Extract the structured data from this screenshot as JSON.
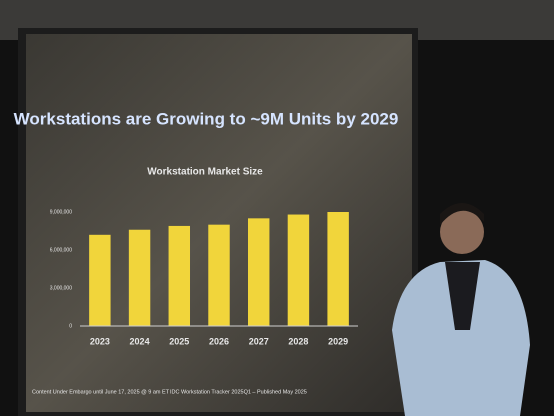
{
  "chart_data": {
    "type": "bar",
    "title": "Workstations are Growing to ~9M Units by 2029",
    "subtitle": "Workstation Market Size",
    "categories": [
      "2023",
      "2024",
      "2025",
      "2026",
      "2027",
      "2028",
      "2029"
    ],
    "values": [
      7200000,
      7600000,
      7900000,
      8000000,
      8500000,
      8800000,
      9000000
    ],
    "color": "#f1d53b",
    "ylim": [
      0,
      9000000
    ],
    "yticks": [
      0,
      {
        "value": 3000000,
        "label": "3,000,000"
      },
      {
        "value": 6000000,
        "label": "6,000,000"
      },
      {
        "value": 9000000,
        "label": "9,000,000"
      }
    ],
    "grid": false,
    "annotations": [
      "Content Under Embargo until June 17, 2025 @ 9 am ET",
      "IDC Workstation Tracker 2025Q1 – Published May 2025"
    ]
  }
}
